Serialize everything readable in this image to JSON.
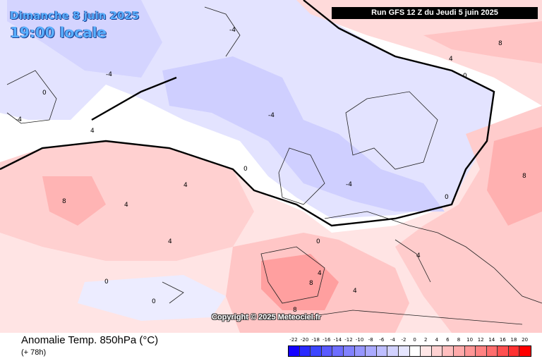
{
  "header": {
    "date_line": "Dimanche 8 juin 2025",
    "time_line": "19:00 locale",
    "run_info": "Run GFS 12 Z du Jeudi 5 juin 2025"
  },
  "copyright": "Copyright © 2025 Meteociel.fr",
  "footer": {
    "parameter": "Anomalie Temp. 850hPa (°C)",
    "lead_time": "(+ 78h)"
  },
  "legend": {
    "ticks": [
      "-22",
      "-20",
      "-18",
      "-16",
      "-14",
      "-12",
      "-10",
      "-8",
      "-6",
      "-4",
      "-2",
      "0",
      "2",
      "4",
      "6",
      "8",
      "10",
      "12",
      "14",
      "16",
      "18",
      "20"
    ],
    "colors": [
      "#1400ff",
      "#2a2aff",
      "#3c46ff",
      "#5a5aff",
      "#6e6eff",
      "#8282ff",
      "#9696ff",
      "#aaaaff",
      "#bebeff",
      "#d2d2ff",
      "#e6e6ff",
      "#ffffff",
      "#ffe6e6",
      "#ffd2d2",
      "#ffbebe",
      "#ffaaaa",
      "#ff9696",
      "#ff8282",
      "#ff6e6e",
      "#ff5050",
      "#ff3232",
      "#ff0000"
    ]
  },
  "contour_labels": {
    "zero": "0",
    "minus4": "-4",
    "plus4": "4",
    "plus8": "8"
  }
}
